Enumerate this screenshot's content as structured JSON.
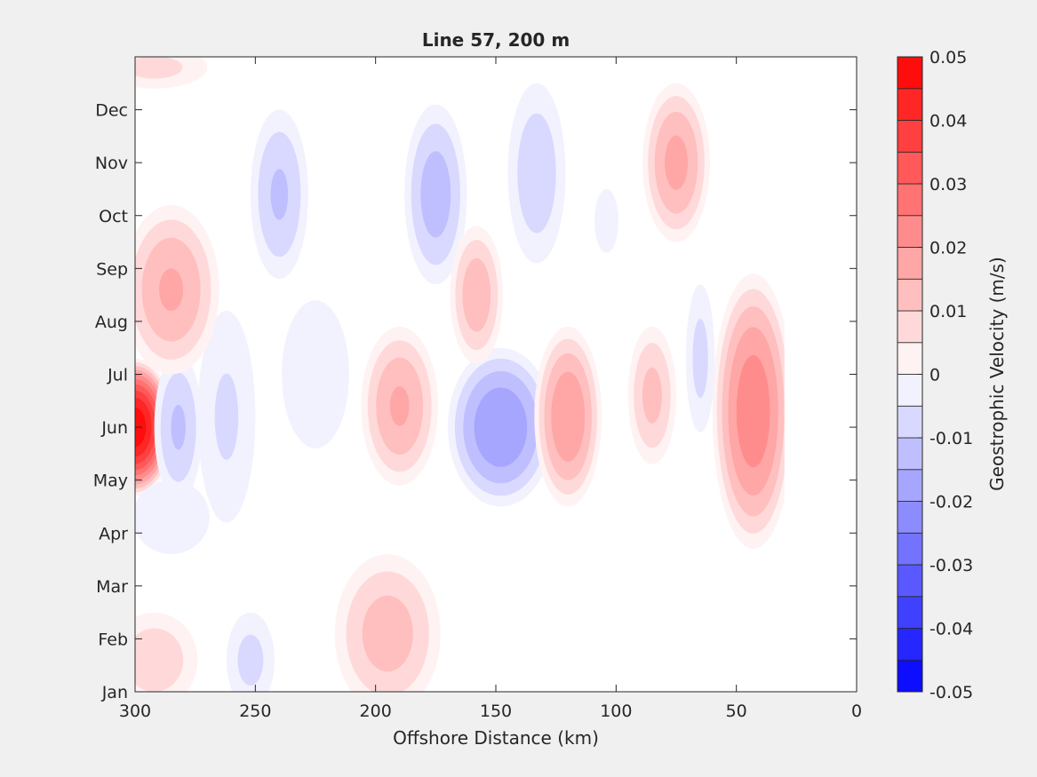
{
  "chart_data": {
    "type": "heatmap",
    "subtype": "filled-contour",
    "title": "Line 57, 200 m",
    "xlabel": "Offshore Distance (km)",
    "ylabel": "",
    "colorbar_label": "Geostrophic Velocity (m/s)",
    "x_reversed": true,
    "xlim": [
      0,
      300
    ],
    "ylim": [
      0,
      12
    ],
    "x_ticks": [
      300,
      250,
      200,
      150,
      100,
      50,
      0
    ],
    "y_tick_labels": [
      "Jan",
      "Feb",
      "Mar",
      "Apr",
      "May",
      "Jun",
      "Jul",
      "Aug",
      "Sep",
      "Oct",
      "Nov",
      "Dec"
    ],
    "data_x_range": [
      30,
      300
    ],
    "contour_step": 0.005,
    "colorbar": {
      "range": [
        -0.05,
        0.05
      ],
      "tick_labels": [
        "0.05",
        "0.04",
        "0.03",
        "0.02",
        "0.01",
        "0",
        "-0.01",
        "-0.02",
        "-0.03",
        "-0.04",
        "-0.05"
      ],
      "levels": [
        -0.05,
        -0.045,
        -0.04,
        -0.035,
        -0.03,
        -0.025,
        -0.02,
        -0.015,
        -0.01,
        -0.005,
        0,
        0.005,
        0.01,
        0.015,
        0.02,
        0.025,
        0.03,
        0.035,
        0.04,
        0.045,
        0.05
      ],
      "colormap": "blue-white-red"
    },
    "features": [
      {
        "x": 300,
        "y": 5.0,
        "rx": 16,
        "ry": 1.3,
        "value": 0.049
      },
      {
        "x": 285,
        "y": 3.3,
        "rx": 16,
        "ry": 0.7,
        "value": -0.003
      },
      {
        "x": 282,
        "y": 5.0,
        "rx": 10,
        "ry": 1.4,
        "value": -0.011
      },
      {
        "x": 262,
        "y": 5.2,
        "rx": 12,
        "ry": 2.0,
        "value": -0.006
      },
      {
        "x": 292,
        "y": 0.6,
        "rx": 18,
        "ry": 0.9,
        "value": 0.009
      },
      {
        "x": 285,
        "y": 7.6,
        "rx": 20,
        "ry": 1.6,
        "value": 0.016
      },
      {
        "x": 292,
        "y": 11.8,
        "rx": 22,
        "ry": 0.4,
        "value": 0.007
      },
      {
        "x": 252,
        "y": 0.6,
        "rx": 10,
        "ry": 0.9,
        "value": -0.007
      },
      {
        "x": 240,
        "y": 9.4,
        "rx": 12,
        "ry": 1.6,
        "value": -0.011
      },
      {
        "x": 225,
        "y": 6.0,
        "rx": 14,
        "ry": 1.4,
        "value": -0.004
      },
      {
        "x": 195,
        "y": 1.1,
        "rx": 22,
        "ry": 1.5,
        "value": 0.013
      },
      {
        "x": 190,
        "y": 5.4,
        "rx": 16,
        "ry": 1.5,
        "value": 0.016
      },
      {
        "x": 175,
        "y": 9.4,
        "rx": 13,
        "ry": 1.7,
        "value": -0.013
      },
      {
        "x": 148,
        "y": 5.0,
        "rx": 22,
        "ry": 1.5,
        "value": -0.02
      },
      {
        "x": 158,
        "y": 7.5,
        "rx": 11,
        "ry": 1.3,
        "value": 0.014
      },
      {
        "x": 133,
        "y": 9.8,
        "rx": 12,
        "ry": 1.7,
        "value": -0.009
      },
      {
        "x": 104,
        "y": 8.9,
        "rx": 5,
        "ry": 0.6,
        "value": -0.003
      },
      {
        "x": 120,
        "y": 5.2,
        "rx": 14,
        "ry": 1.7,
        "value": 0.02
      },
      {
        "x": 85,
        "y": 5.6,
        "rx": 10,
        "ry": 1.3,
        "value": 0.012
      },
      {
        "x": 75,
        "y": 10.0,
        "rx": 14,
        "ry": 1.5,
        "value": 0.017
      },
      {
        "x": 43,
        "y": 5.3,
        "rx": 17,
        "ry": 2.6,
        "value": 0.024
      },
      {
        "x": 65,
        "y": 6.3,
        "rx": 6,
        "ry": 1.4,
        "value": -0.007
      }
    ]
  }
}
